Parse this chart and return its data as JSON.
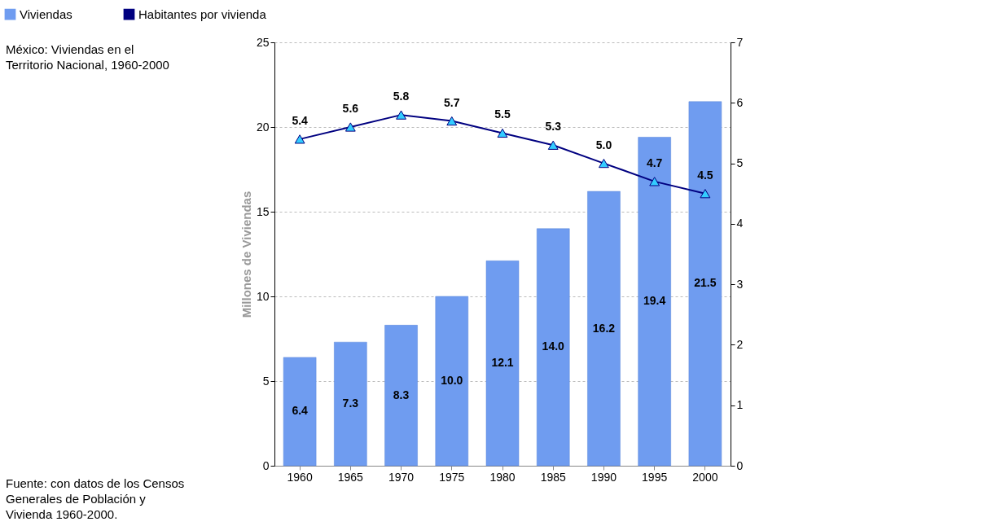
{
  "chart_data": {
    "type": "bar",
    "title": "México: Viviendas en el Territorio Nacional, 1960-2000",
    "annotations": [
      "Fuente: con datos de los Censos Generales de Población y Vivienda 1960-2000."
    ],
    "ylabel": "Millones de Viviendas",
    "categories": [
      "1960",
      "1965",
      "1970",
      "1975",
      "1980",
      "1985",
      "1990",
      "1995",
      "2000"
    ],
    "series": [
      {
        "name": "Viviendas",
        "color": "#6f9cf0",
        "values": [
          6.4,
          7.3,
          8.3,
          10.0,
          12.1,
          14.0,
          16.2,
          19.4,
          21.5
        ],
        "value_labels": [
          "6.4",
          "7.3",
          "8.3",
          "10.0",
          "12.1",
          "14.0",
          "16.2",
          "19.4",
          "21.5"
        ]
      },
      {
        "name": "Habitantes por vivienda",
        "type": "line",
        "axis": "y2",
        "color": "#000080",
        "marker": "triangle",
        "values": [
          5.4,
          5.6,
          5.8,
          5.7,
          5.5,
          5.3,
          5.0,
          4.7,
          4.5
        ],
        "value_labels": [
          "5.4",
          "5.6",
          "5.8",
          "5.7",
          "5.5",
          "5.3",
          "5.0",
          "4.7",
          "4.5"
        ]
      }
    ],
    "ylim": [
      0,
      25
    ],
    "yticks": [
      0,
      5,
      10,
      15,
      20,
      25
    ],
    "y2lim": [
      0,
      7
    ],
    "y2ticks": [
      0,
      1,
      2,
      3,
      4,
      5,
      6,
      7
    ],
    "grid": "y",
    "legend": "top"
  }
}
